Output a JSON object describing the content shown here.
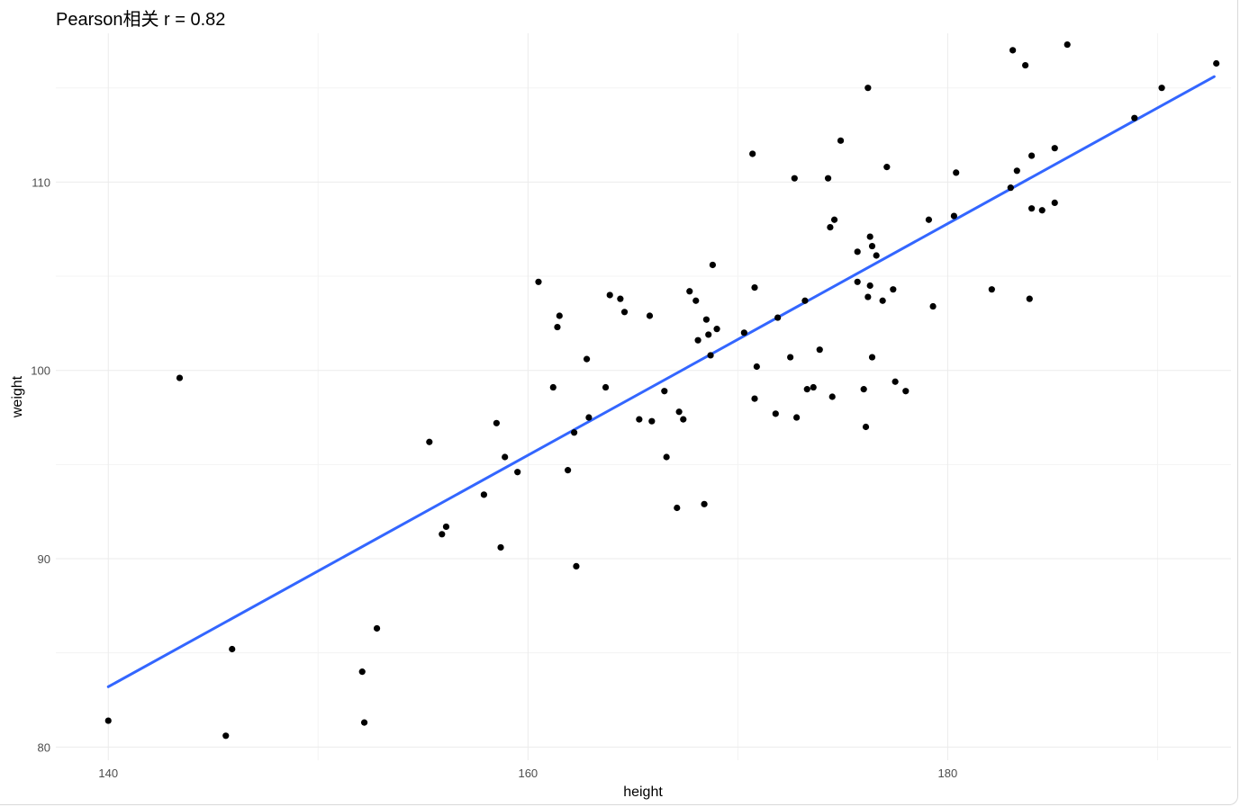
{
  "title": "Pearson相关 r = 0.82",
  "chart_data": {
    "type": "scatter",
    "title": "Pearson相关 r = 0.82",
    "xlabel": "height",
    "ylabel": "weight",
    "xlim": [
      137.5,
      193.5
    ],
    "ylim": [
      79.3,
      117.9
    ],
    "x_ticks": [
      140,
      160,
      180
    ],
    "y_ticks": [
      80,
      90,
      100,
      110
    ],
    "grid": true,
    "colors": {
      "points": "#000000",
      "fit_line": "#3366ff",
      "grid": "#ebebeb"
    },
    "fit_line": {
      "x": [
        140.0,
        192.7
      ],
      "y": [
        83.2,
        115.6
      ]
    },
    "points": {
      "x": [
        140.0,
        143.4,
        145.6,
        145.9,
        152.1,
        152.2,
        152.8,
        155.3,
        155.9,
        156.1,
        157.9,
        158.5,
        158.7,
        158.9,
        159.5,
        160.5,
        161.2,
        161.4,
        161.5,
        161.9,
        162.2,
        162.3,
        162.8,
        162.9,
        163.7,
        163.9,
        164.4,
        164.6,
        165.3,
        165.8,
        165.9,
        166.5,
        166.6,
        167.1,
        167.2,
        167.4,
        167.7,
        168.0,
        168.1,
        168.4,
        168.5,
        168.6,
        168.7,
        168.8,
        169.0,
        170.3,
        170.7,
        170.8,
        170.8,
        170.9,
        171.8,
        171.9,
        172.5,
        172.7,
        172.8,
        173.2,
        173.3,
        173.6,
        173.9,
        174.3,
        174.4,
        174.5,
        174.6,
        174.9,
        175.7,
        175.7,
        176.0,
        176.1,
        176.2,
        176.2,
        176.3,
        176.3,
        176.4,
        176.4,
        176.6,
        176.9,
        177.1,
        177.4,
        177.5,
        178.0,
        179.1,
        179.3,
        180.3,
        180.4,
        182.1,
        183.0,
        183.1,
        183.3,
        183.7,
        183.9,
        184.0,
        184.0,
        184.5,
        185.1,
        185.1,
        185.7,
        188.9,
        190.2,
        192.8
      ],
      "y": [
        81.4,
        99.6,
        80.6,
        85.2,
        84.0,
        81.3,
        86.3,
        96.2,
        91.3,
        91.7,
        93.4,
        97.2,
        90.6,
        95.4,
        94.6,
        104.7,
        99.1,
        102.3,
        102.9,
        94.7,
        96.7,
        89.6,
        100.6,
        97.5,
        99.1,
        104.0,
        103.8,
        103.1,
        97.4,
        102.9,
        97.3,
        98.9,
        95.4,
        92.7,
        97.8,
        97.4,
        104.2,
        103.7,
        101.6,
        92.9,
        102.7,
        101.9,
        100.8,
        105.6,
        102.2,
        102.0,
        111.5,
        98.5,
        104.4,
        100.2,
        97.7,
        102.8,
        100.7,
        110.2,
        97.5,
        103.7,
        99.0,
        99.1,
        101.1,
        110.2,
        107.6,
        98.6,
        108.0,
        112.2,
        106.3,
        104.7,
        99.0,
        97.0,
        115.0,
        103.9,
        104.5,
        107.1,
        106.6,
        100.7,
        106.1,
        103.7,
        110.8,
        104.3,
        99.4,
        98.9,
        108.0,
        103.4,
        108.2,
        110.5,
        104.3,
        109.7,
        117.0,
        110.6,
        116.2,
        103.8,
        111.4,
        108.6,
        108.5,
        111.8,
        108.9,
        117.3,
        113.4,
        115.0,
        116.3
      ]
    }
  }
}
